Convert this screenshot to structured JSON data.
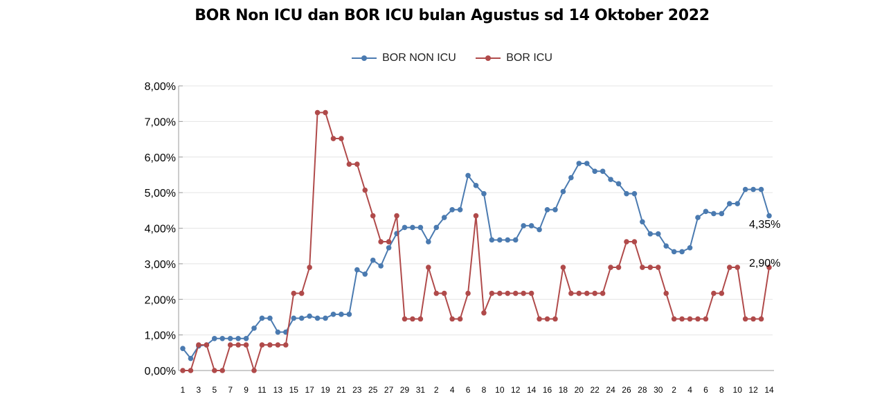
{
  "chart_data": {
    "type": "line",
    "title": "BOR Non ICU dan BOR ICU bulan Agustus sd 14 Oktober 2022",
    "xlabel": "",
    "ylabel": "",
    "ylim": [
      0,
      8
    ],
    "y_ticks": [
      "0,00%",
      "1,00%",
      "2,00%",
      "3,00%",
      "4,00%",
      "5,00%",
      "6,00%",
      "7,00%",
      "8,00%"
    ],
    "legend_position": "top-center",
    "grid": "horizontal",
    "categories": [
      "1",
      "2",
      "3",
      "4",
      "5",
      "6",
      "7",
      "8",
      "9",
      "10",
      "11",
      "12",
      "13",
      "14",
      "15",
      "16",
      "17",
      "18",
      "19",
      "20",
      "21",
      "22",
      "23",
      "24",
      "25",
      "26",
      "27",
      "28",
      "29",
      "30",
      "31",
      "1",
      "2",
      "3",
      "4",
      "5",
      "6",
      "7",
      "8",
      "9",
      "10",
      "11",
      "12",
      "13",
      "14",
      "15",
      "16",
      "17",
      "18",
      "19",
      "20",
      "21",
      "22",
      "23",
      "24",
      "25",
      "26",
      "27",
      "28",
      "29",
      "30",
      "1",
      "2",
      "3",
      "4",
      "5",
      "6",
      "7",
      "8",
      "9",
      "10",
      "11",
      "12",
      "13",
      "14"
    ],
    "x_tick_labels": [
      "1",
      "",
      "3",
      "",
      "5",
      "",
      "7",
      "",
      "9",
      "",
      "11",
      "",
      "13",
      "",
      "15",
      "",
      "17",
      "",
      "19",
      "",
      "21",
      "",
      "23",
      "",
      "25",
      "",
      "27",
      "",
      "29",
      "",
      "31",
      "",
      "2",
      "",
      "4",
      "",
      "6",
      "",
      "8",
      "",
      "10",
      "",
      "12",
      "",
      "14",
      "",
      "16",
      "",
      "18",
      "",
      "20",
      "",
      "22",
      "",
      "24",
      "",
      "26",
      "",
      "28",
      "",
      "30",
      "",
      "2",
      "",
      "4",
      "",
      "6",
      "",
      "8",
      "",
      "10",
      "",
      "12",
      "",
      "14"
    ],
    "series": [
      {
        "name": "BOR NON ICU",
        "color": "#4a7ab0",
        "values": [
          0.62,
          0.34,
          0.69,
          0.72,
          0.9,
          0.9,
          0.9,
          0.9,
          0.9,
          1.19,
          1.47,
          1.47,
          1.08,
          1.08,
          1.47,
          1.47,
          1.53,
          1.47,
          1.47,
          1.58,
          1.58,
          1.58,
          2.83,
          2.71,
          3.1,
          2.94,
          3.45,
          3.85,
          4.02,
          4.02,
          4.02,
          3.62,
          4.02,
          4.3,
          4.52,
          4.52,
          5.48,
          5.2,
          4.97,
          3.67,
          3.67,
          3.67,
          3.67,
          4.07,
          4.07,
          3.96,
          4.52,
          4.52,
          5.03,
          5.42,
          5.82,
          5.82,
          5.6,
          5.6,
          5.37,
          5.25,
          4.97,
          4.97,
          4.18,
          3.84,
          3.84,
          3.5,
          3.34,
          3.34,
          3.45,
          4.3,
          4.47,
          4.41,
          4.41,
          4.69,
          4.69,
          5.09,
          5.09,
          5.09,
          4.35
        ],
        "end_label": "4,35%"
      },
      {
        "name": "BOR ICU",
        "color": "#b04a4a",
        "values": [
          0,
          0,
          0.72,
          0.72,
          0,
          0,
          0.72,
          0.72,
          0.72,
          0,
          0.72,
          0.72,
          0.72,
          0.72,
          2.17,
          2.17,
          2.9,
          7.25,
          7.25,
          6.52,
          6.52,
          5.8,
          5.8,
          5.07,
          4.35,
          3.62,
          3.62,
          4.35,
          1.45,
          1.45,
          1.45,
          2.9,
          2.17,
          2.17,
          1.45,
          1.45,
          2.17,
          4.35,
          1.62,
          2.17,
          2.17,
          2.17,
          2.17,
          2.17,
          2.17,
          1.45,
          1.45,
          1.45,
          2.9,
          2.17,
          2.17,
          2.17,
          2.17,
          2.17,
          2.9,
          2.9,
          3.62,
          3.62,
          2.9,
          2.9,
          2.9,
          2.17,
          1.45,
          1.45,
          1.45,
          1.45,
          1.45,
          2.17,
          2.17,
          2.9,
          2.9,
          1.45,
          1.45,
          1.45,
          2.9
        ],
        "end_label": "2,90%"
      }
    ]
  }
}
